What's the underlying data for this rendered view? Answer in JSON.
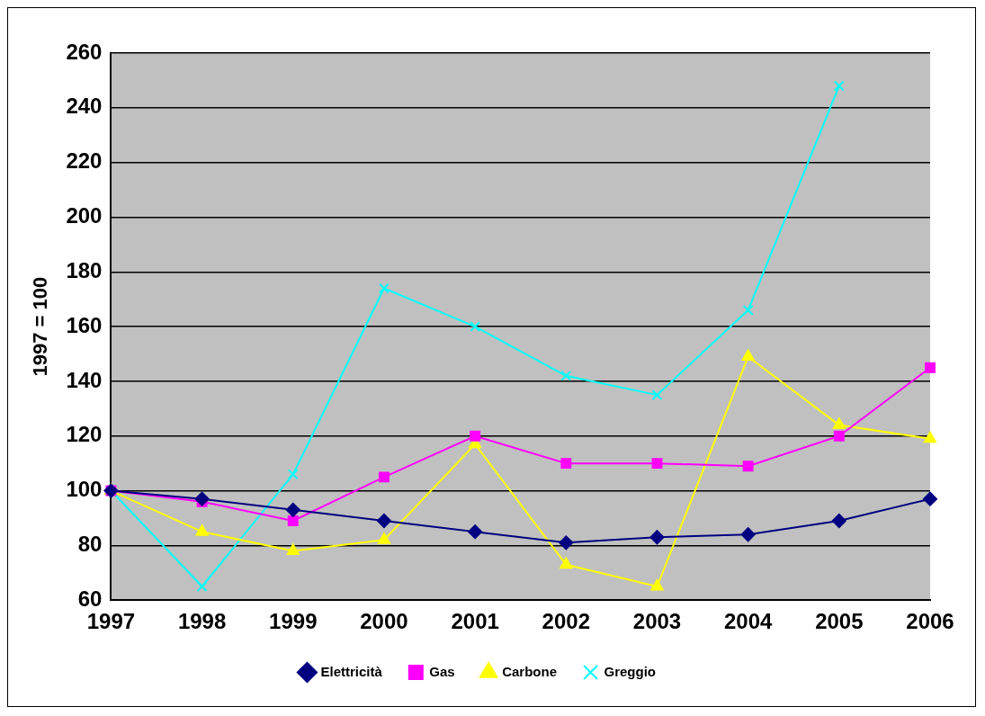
{
  "chart_data": {
    "type": "line",
    "ylabel": "1997 = 100",
    "categories": [
      "1997",
      "1998",
      "1999",
      "2000",
      "2001",
      "2002",
      "2003",
      "2004",
      "2005",
      "2006"
    ],
    "series": [
      {
        "name": "Elettricità",
        "color": "#000080",
        "marker": "diamond",
        "values": [
          100,
          97,
          93,
          89,
          85,
          81,
          83,
          84,
          89,
          97
        ]
      },
      {
        "name": "Gas",
        "color": "#ff00ff",
        "marker": "square",
        "values": [
          100,
          96,
          89,
          105,
          120,
          110,
          110,
          109,
          120,
          145
        ]
      },
      {
        "name": "Carbone",
        "color": "#ffff00",
        "marker": "triangle",
        "values": [
          100,
          85,
          78,
          82,
          117,
          73,
          65,
          149,
          124,
          119
        ]
      },
      {
        "name": "Greggio",
        "color": "#00ffff",
        "marker": "cross",
        "values": [
          100,
          65,
          106,
          174,
          160,
          142,
          135,
          166,
          248,
          null
        ]
      }
    ],
    "ylim": [
      60,
      260
    ],
    "yticks": [
      60,
      80,
      100,
      120,
      140,
      160,
      180,
      200,
      220,
      240,
      260
    ],
    "grid": "y",
    "legend": "bottom"
  }
}
